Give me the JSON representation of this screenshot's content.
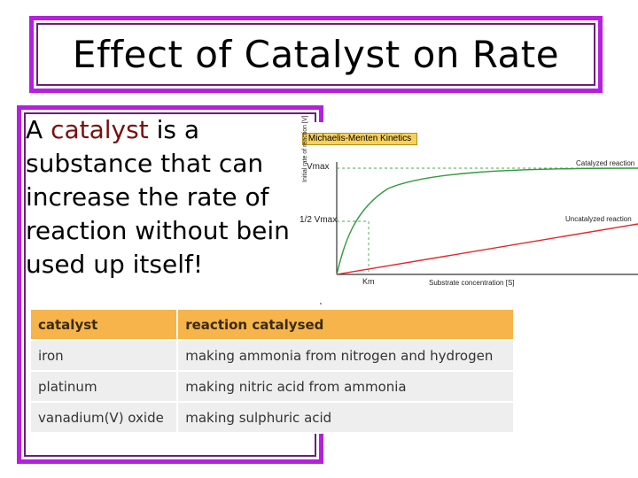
{
  "slide": {
    "title": "Effect of Catalyst on Rate",
    "definition_prefix": "A",
    "definition_term": "catalyst",
    "definition_rest": "is a substance that can increase the rate of reaction without being used up itself!"
  },
  "graph": {
    "title": "Michaelis-Menten Kinetics",
    "vmax_label": "Vmax",
    "half_vmax_label": "1/2 Vmax",
    "km_label": "Km",
    "x_axis_label": "Substrate concentration [S]",
    "y_axis_label": "Initial rate of reaction [V]",
    "catalyzed_label": "Catalyzed reaction",
    "uncatalyzed_label": "Uncatalyzed reaction",
    "colors": {
      "catalyzed": "#2e9a3b",
      "uncatalyzed": "#e2262b",
      "guide": "#4aa84f"
    }
  },
  "table": {
    "headers": [
      "catalyst",
      "reaction catalysed"
    ],
    "rows": [
      [
        "iron",
        "making ammonia from nitrogen and hydrogen"
      ],
      [
        "platinum",
        "making nitric acid from ammonia"
      ],
      [
        "vanadium(V) oxide",
        "making sulphuric acid"
      ]
    ]
  },
  "colors": {
    "frame": "#b51fe0",
    "header_bg": "#f6b44a",
    "row_bg": "#eeeeee"
  }
}
